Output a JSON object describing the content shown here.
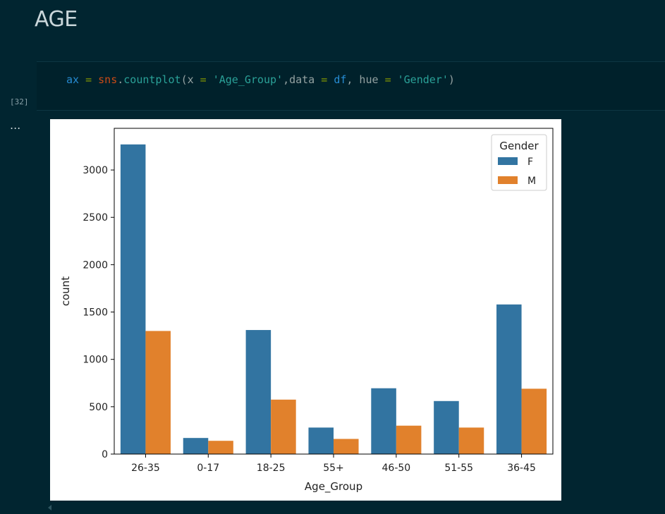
{
  "heading": "AGE",
  "cell": {
    "execution_count": "[32]",
    "code_tokens": [
      {
        "t": "ax",
        "c": "tok-var"
      },
      {
        "t": " ",
        "c": "tok-plain"
      },
      {
        "t": "=",
        "c": "tok-op"
      },
      {
        "t": " ",
        "c": "tok-plain"
      },
      {
        "t": "sns",
        "c": "tok-mod"
      },
      {
        "t": ".",
        "c": "tok-plain"
      },
      {
        "t": "countplot",
        "c": "tok-fn"
      },
      {
        "t": "(x ",
        "c": "tok-plain"
      },
      {
        "t": "=",
        "c": "tok-op"
      },
      {
        "t": " ",
        "c": "tok-plain"
      },
      {
        "t": "'Age_Group'",
        "c": "tok-str"
      },
      {
        "t": ",data ",
        "c": "tok-plain"
      },
      {
        "t": "=",
        "c": "tok-op"
      },
      {
        "t": " ",
        "c": "tok-plain"
      },
      {
        "t": "df",
        "c": "tok-var"
      },
      {
        "t": ", hue ",
        "c": "tok-plain"
      },
      {
        "t": "=",
        "c": "tok-op"
      },
      {
        "t": " ",
        "c": "tok-plain"
      },
      {
        "t": "'Gender'",
        "c": "tok-str"
      },
      {
        "t": ")",
        "c": "tok-plain"
      }
    ]
  },
  "output_prompt": "...",
  "colors": {
    "background": "#012530",
    "series_f": "#3274a1",
    "series_m": "#e1812c"
  },
  "chart_data": {
    "type": "bar",
    "title": "",
    "xlabel": "Age_Group",
    "ylabel": "count",
    "categories": [
      "26-35",
      "0-17",
      "18-25",
      "55+",
      "46-50",
      "51-55",
      "36-45"
    ],
    "series": [
      {
        "name": "F",
        "values": [
          3270,
          170,
          1310,
          280,
          695,
          560,
          1580
        ]
      },
      {
        "name": "M",
        "values": [
          1300,
          140,
          575,
          160,
          300,
          280,
          690
        ]
      }
    ],
    "ylim": [
      0,
      3440
    ],
    "yticks": [
      0,
      500,
      1000,
      1500,
      2000,
      2500,
      3000
    ],
    "legend": {
      "title": "Gender",
      "placement": "top-right"
    },
    "grid": false
  }
}
